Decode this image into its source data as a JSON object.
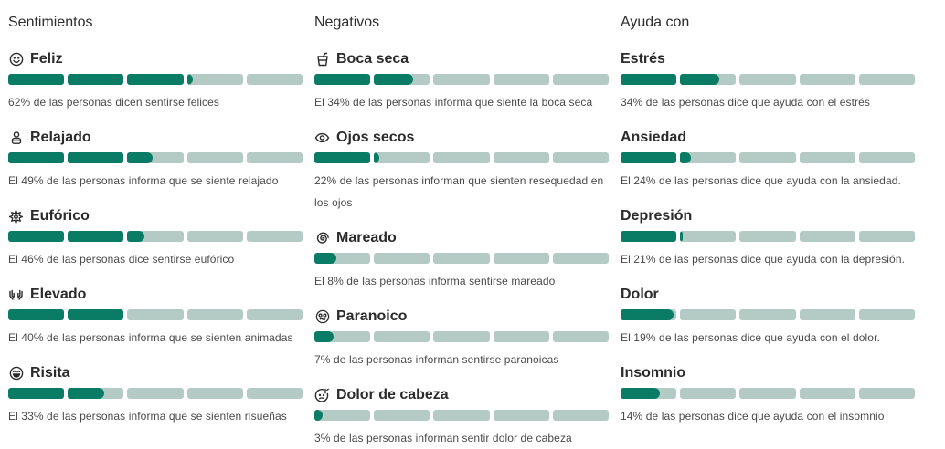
{
  "colors": {
    "fill": "#0a7c66",
    "track": "#b4cbc5"
  },
  "columns": [
    {
      "title": "Sentimientos",
      "items": [
        {
          "icon": "smile-icon",
          "label": "Feliz",
          "percent": 62,
          "desc": "62% de las personas dicen sentirse felices"
        },
        {
          "icon": "person-icon",
          "label": "Relajado",
          "percent": 49,
          "desc": "El 49% de las personas informa que se siente relajado"
        },
        {
          "icon": "sparkle-burst-icon",
          "label": "Eufórico",
          "percent": 46,
          "desc": "El 46% de las personas dice sentirse eufórico"
        },
        {
          "icon": "raised-hands-icon",
          "label": "Elevado",
          "percent": 40,
          "desc": "El 40% de las personas informa que se sienten animadas"
        },
        {
          "icon": "laughing-face-icon",
          "label": "Risita",
          "percent": 33,
          "desc": "El 33% de las personas informa que se sienten risueñas"
        }
      ]
    },
    {
      "title": "Negativos",
      "items": [
        {
          "icon": "drink-cup-icon",
          "label": "Boca seca",
          "percent": 34,
          "desc": "El 34% de las personas informa que siente la boca seca"
        },
        {
          "icon": "eye-icon",
          "label": "Ojos secos",
          "percent": 22,
          "desc": "22% de las personas informan que sienten resequedad en los ojos"
        },
        {
          "icon": "spiral-icon",
          "label": "Mareado",
          "percent": 8,
          "desc": "El 8% de las personas informa sentirse mareado"
        },
        {
          "icon": "dizzy-face-icon",
          "label": "Paranoico",
          "percent": 7,
          "desc": "7% de las personas informan sentirse paranoicas"
        },
        {
          "icon": "headache-face-icon",
          "label": "Dolor de cabeza",
          "percent": 3,
          "desc": "3% de las personas informan sentir dolor de cabeza"
        }
      ]
    },
    {
      "title": "Ayuda con",
      "items": [
        {
          "label": "Estrés",
          "percent": 34,
          "desc": "34% de las personas dice que ayuda con el estrés"
        },
        {
          "label": "Ansiedad",
          "percent": 24,
          "desc": "El 24% de las personas dice que ayuda con la ansiedad."
        },
        {
          "label": "Depresión",
          "percent": 21,
          "desc": "El 21% de las personas dice que ayuda con la depresión."
        },
        {
          "label": "Dolor",
          "percent": 19,
          "desc": "El 19% de las personas dice que ayuda con el dolor."
        },
        {
          "label": "Insomnio",
          "percent": 14,
          "desc": "14% de las personas dice que ayuda con el insomnio"
        }
      ]
    }
  ]
}
